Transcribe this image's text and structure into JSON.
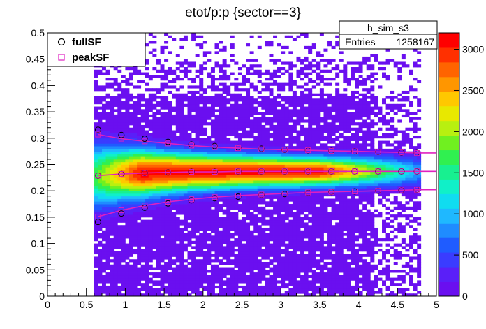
{
  "chart_data": {
    "type": "heatmap",
    "title": "etot/p:p {sector==3}",
    "xlabel": "",
    "ylabel": "",
    "xlim": [
      0,
      5
    ],
    "ylim": [
      0,
      0.5
    ],
    "x_ticks": [
      "0",
      "0.5",
      "1",
      "1.5",
      "2",
      "2.5",
      "3",
      "3.5",
      "4",
      "4.5",
      "5"
    ],
    "y_ticks": [
      "0",
      "0.05",
      "0.1",
      "0.15",
      "0.2",
      "0.25",
      "0.3",
      "0.35",
      "0.4",
      "0.45",
      "0.5"
    ],
    "z_range": [
      0,
      3200
    ],
    "colorbar_ticks": [
      "0",
      "500",
      "1000",
      "1500",
      "2000",
      "2500",
      "3000"
    ],
    "stats_box": {
      "name": "h_sim_s3",
      "entries_label": "Entries",
      "entries_value": "1258167"
    },
    "legend": {
      "placement": "top-left",
      "entries": [
        {
          "label": "fullSF",
          "marker": "circle",
          "color": "#000000"
        },
        {
          "label": "peakSF",
          "marker": "square",
          "color": "#e020c0"
        }
      ]
    },
    "series": [
      {
        "name": "fullSF",
        "x": [
          0.65,
          0.95,
          1.25,
          1.55,
          1.85,
          2.15,
          2.45,
          2.75,
          3.05,
          3.35,
          3.65,
          3.95,
          4.25,
          4.55,
          4.75
        ],
        "mean": [
          0.229,
          0.232,
          0.234,
          0.235,
          0.236,
          0.236,
          0.237,
          0.237,
          0.237,
          0.237,
          0.237,
          0.237,
          0.237,
          0.237,
          0.237
        ],
        "upper": [
          0.316,
          0.306,
          0.299,
          0.293,
          0.288,
          0.285,
          0.282,
          0.28,
          0.278,
          0.277,
          0.276,
          0.275,
          0.274,
          0.273,
          0.272
        ],
        "lower": [
          0.141,
          0.157,
          0.168,
          0.176,
          0.182,
          0.186,
          0.189,
          0.192,
          0.194,
          0.196,
          0.198,
          0.199,
          0.2,
          0.201,
          0.202
        ]
      },
      {
        "name": "peakSF",
        "x": [
          0.65,
          0.95,
          1.25,
          1.55,
          1.85,
          2.15,
          2.45,
          2.75,
          3.05,
          3.35,
          3.65,
          3.95,
          4.25,
          4.55,
          4.75
        ],
        "mean": [
          0.229,
          0.232,
          0.234,
          0.235,
          0.236,
          0.236,
          0.237,
          0.237,
          0.237,
          0.237,
          0.237,
          0.237,
          0.237,
          0.237,
          0.237
        ],
        "upper": [
          0.307,
          0.299,
          0.294,
          0.29,
          0.286,
          0.283,
          0.281,
          0.279,
          0.278,
          0.277,
          0.276,
          0.275,
          0.274,
          0.273,
          0.272
        ],
        "lower": [
          0.151,
          0.163,
          0.172,
          0.179,
          0.184,
          0.188,
          0.191,
          0.193,
          0.195,
          0.197,
          0.198,
          0.199,
          0.2,
          0.201,
          0.202
        ]
      }
    ],
    "colormap": [
      "#6a0ff0",
      "#5a1ff8",
      "#3a3cff",
      "#1f5cff",
      "#1f8cff",
      "#1fb8ff",
      "#10dcf0",
      "#10f0c8",
      "#18f090",
      "#30f050",
      "#70f020",
      "#b8f010",
      "#e8e800",
      "#ffc800",
      "#ff9600",
      "#ff6400",
      "#ff3000",
      "#ff0000"
    ]
  }
}
